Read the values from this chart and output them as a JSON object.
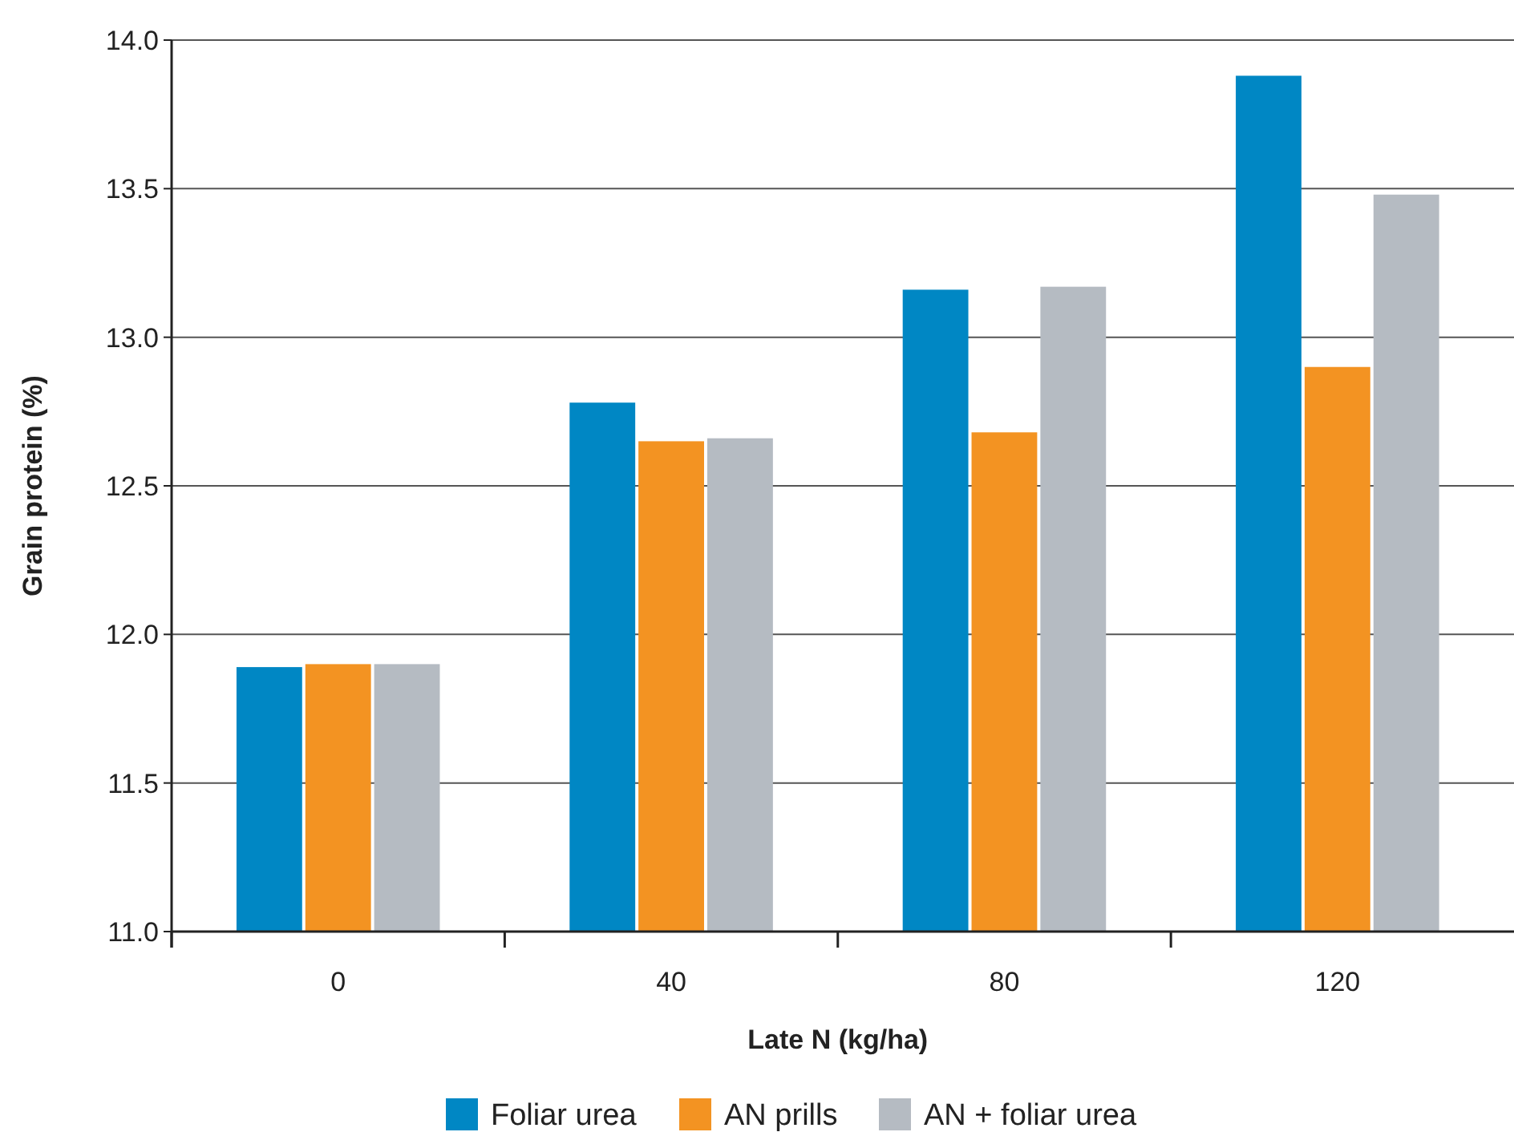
{
  "chart_data": {
    "type": "bar",
    "xlabel": "Late N (kg/ha)",
    "ylabel": "Grain protein (%)",
    "categories": [
      "0",
      "40",
      "80",
      "120"
    ],
    "series": [
      {
        "name": "Foliar urea",
        "color": "#0087c4",
        "values": [
          11.89,
          12.78,
          13.16,
          13.88
        ]
      },
      {
        "name": "AN prills",
        "color": "#f39322",
        "values": [
          11.9,
          12.65,
          12.68,
          12.9
        ]
      },
      {
        "name": "AN + foliar urea",
        "color": "#b5bbc2",
        "values": [
          11.9,
          12.66,
          13.17,
          13.48
        ]
      }
    ],
    "ylim": [
      11,
      14
    ],
    "yticks": [
      {
        "value": 11,
        "label": "11.0"
      },
      {
        "value": 11.5,
        "label": "11.5"
      },
      {
        "value": 12,
        "label": "12.0"
      },
      {
        "value": 12.5,
        "label": "12.5"
      },
      {
        "value": 13,
        "label": "13.0"
      },
      {
        "value": 13.5,
        "label": "13.5"
      },
      {
        "value": 14,
        "label": "14.0"
      }
    ],
    "grid": "y",
    "legend": "bottom"
  }
}
